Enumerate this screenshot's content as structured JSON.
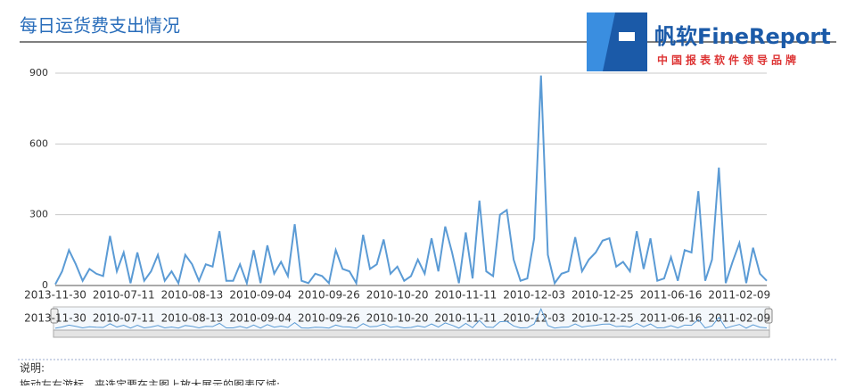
{
  "title": "每日运货费支出情况",
  "logo": {
    "brand": "帆软FineReport",
    "slogan": "中国报表软件领导品牌"
  },
  "notes": {
    "heading": "说明:",
    "text": "拖动左右游标，来选定要在主图上放大展示的图表区域;"
  },
  "chart_data": {
    "type": "line",
    "categories": [
      "2013-11-30",
      null,
      null,
      null,
      null,
      null,
      null,
      null,
      null,
      null,
      "2010-07-11",
      null,
      null,
      null,
      null,
      null,
      null,
      null,
      null,
      null,
      "2010-08-13",
      null,
      null,
      null,
      null,
      null,
      null,
      null,
      null,
      null,
      "2010-09-04",
      null,
      null,
      null,
      null,
      null,
      null,
      null,
      null,
      null,
      "2010-09-26",
      null,
      null,
      null,
      null,
      null,
      null,
      null,
      null,
      null,
      "2010-10-20",
      null,
      null,
      null,
      null,
      null,
      null,
      null,
      null,
      null,
      "2010-11-11",
      null,
      null,
      null,
      null,
      null,
      null,
      null,
      null,
      null,
      "2010-12-03",
      null,
      null,
      null,
      null,
      null,
      null,
      null,
      null,
      null,
      "2010-12-25",
      null,
      null,
      null,
      null,
      null,
      null,
      null,
      null,
      null,
      "2011-06-16",
      null,
      null,
      null,
      null,
      null,
      null,
      null,
      null,
      null,
      "2011-02-09",
      null,
      null,
      null,
      null
    ],
    "series": [
      {
        "color": "#5b9bd5",
        "values": [
          5,
          60,
          150,
          90,
          20,
          70,
          50,
          40,
          210,
          60,
          140,
          10,
          140,
          20,
          60,
          130,
          20,
          60,
          10,
          130,
          90,
          20,
          90,
          80,
          230,
          20,
          20,
          90,
          10,
          150,
          10,
          170,
          50,
          100,
          40,
          260,
          20,
          10,
          50,
          40,
          10,
          150,
          70,
          60,
          10,
          215,
          70,
          90,
          195,
          50,
          80,
          20,
          40,
          110,
          50,
          200,
          60,
          250,
          140,
          10,
          225,
          30,
          360,
          60,
          40,
          300,
          320,
          110,
          20,
          30,
          200,
          890,
          130,
          10,
          50,
          60,
          205,
          60,
          110,
          140,
          190,
          200,
          80,
          100,
          60,
          230,
          70,
          200,
          20,
          30,
          120,
          20,
          150,
          140,
          400,
          20,
          110,
          500,
          10,
          100,
          180,
          10,
          160,
          50,
          20
        ]
      }
    ],
    "ylim": [
      0,
      900
    ],
    "yticks": [
      0,
      300,
      600,
      900
    ],
    "grid": true
  }
}
